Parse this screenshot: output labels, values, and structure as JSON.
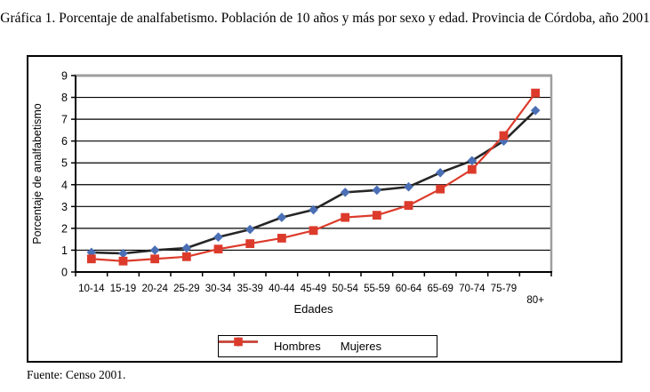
{
  "page": {
    "title": "Gráfica 1. Porcentaje de analfabetismo. Población de 10 años y más por sexo y edad. Provincia de Córdoba, año 2001",
    "source": "Fuente: Censo 2001."
  },
  "chart_data": {
    "type": "line",
    "title": "",
    "xlabel": "Edades",
    "ylabel": "Porcentaje de analfabetismo",
    "ylim": [
      0,
      9
    ],
    "ytick_step": 1,
    "grid": true,
    "legend_position": "bottom-center",
    "categories": [
      "10-14",
      "15-19",
      "20-24",
      "25-29",
      "30-34",
      "35-39",
      "40-44",
      "45-49",
      "50-54",
      "55-59",
      "60-64",
      "65-69",
      "70-74",
      "75-79",
      "80+"
    ],
    "series": [
      {
        "name": "Hombres",
        "marker": "diamond",
        "line_color": "#262626",
        "marker_color": "#4a6fb5",
        "line_width": 2.6,
        "values": [
          0.9,
          0.85,
          1.0,
          1.1,
          1.6,
          1.95,
          2.5,
          2.85,
          3.65,
          3.75,
          3.9,
          4.55,
          5.1,
          6.0,
          7.4
        ]
      },
      {
        "name": "Mujeres",
        "marker": "square",
        "line_color": "#dc3b2c",
        "marker_color": "#dc3b2c",
        "line_width": 2.2,
        "values": [
          0.6,
          0.5,
          0.6,
          0.7,
          1.05,
          1.3,
          1.55,
          1.9,
          2.5,
          2.6,
          3.05,
          3.8,
          4.7,
          6.25,
          8.2
        ]
      }
    ],
    "style_colors": {
      "gridline": "#000000",
      "axis": "#000000",
      "wall_border": "#9e9e9e",
      "background": "#ffffff"
    }
  }
}
